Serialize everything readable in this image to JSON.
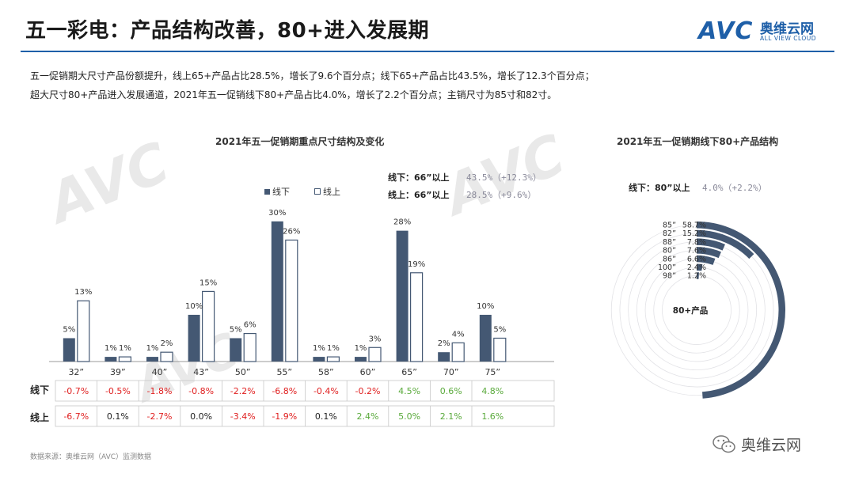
{
  "header": {
    "title": "五一彩电：产品结构改善，80+进入发展期",
    "logo_mark": "AVC",
    "logo_cn": "奥维云网",
    "logo_en": "ALL VIEW CLOUD"
  },
  "summary": {
    "line1": "五一促销期大尺寸产品份额提升，线上65+产品占比28.5%，增长了9.6个百分点；线下65+产品占比43.5%，增长了12.3个百分点；",
    "line2": "超大尺寸80+产品进入发展通道，2021年五一促销线下80+产品占比4.0%，增长了2.2个百分点；主销尺寸为85寸和82寸。"
  },
  "bar_notes": [
    {
      "label": "线下：66”以上",
      "value": "43.5%（+12.3%）"
    },
    {
      "label": "线上：66”以上",
      "value": "28.5%（+9.6%）"
    }
  ],
  "table": {
    "row_offline_label": "线下",
    "row_online_label": "线上"
  },
  "radial_note": {
    "label": "线下：80”以上",
    "value": "4.0%（+2.2%）"
  },
  "footer": {
    "source": "数据来源：奥维云网（AVC）监测数据",
    "wechat_name": "奥维云网"
  },
  "colors": {
    "offline": "#445873",
    "online": "#ffffff",
    "positive": "#5aaa3c",
    "negative": "#e02020",
    "neutral": "#222222",
    "brand": "#1e5fa8"
  },
  "chart_data": [
    {
      "type": "bar",
      "title": "2021年五一促销期重点尺寸结构及变化",
      "categories": [
        "32”",
        "39”",
        "40”",
        "43”",
        "50”",
        "55”",
        "58”",
        "60”",
        "65”",
        "70”",
        "75”"
      ],
      "series": [
        {
          "name": "线下",
          "values": [
            5,
            1,
            1,
            10,
            5,
            30,
            1,
            1,
            28,
            2,
            10
          ],
          "labels": [
            "5%",
            "1%",
            "1%",
            "10%",
            "5%",
            "30%",
            "1%",
            "1%",
            "28%",
            "2%",
            "10%"
          ]
        },
        {
          "name": "线上",
          "values": [
            13,
            1,
            2,
            15,
            6,
            26,
            1,
            3,
            19,
            4,
            5
          ],
          "labels": [
            "13%",
            "1%",
            "2%",
            "15%",
            "6%",
            "26%",
            "1%",
            "3%",
            "19%",
            "4%",
            "5%"
          ]
        }
      ],
      "changes": {
        "线下": [
          "-0.7%",
          "-0.5%",
          "-1.8%",
          "-0.8%",
          "-2.2%",
          "-6.8%",
          "-0.4%",
          "-0.2%",
          "4.5%",
          "0.6%",
          "4.8%"
        ],
        "线上": [
          "-6.7%",
          "0.1%",
          "-2.7%",
          "0.0%",
          "-3.4%",
          "-1.9%",
          "0.1%",
          "2.4%",
          "5.0%",
          "2.1%",
          "1.6%"
        ]
      },
      "ylim": [
        0,
        32
      ]
    },
    {
      "type": "radial-bar",
      "title": "2021年五一促销期线下80+产品结构",
      "center_label": "80+产品",
      "categories": [
        "85”",
        "82”",
        "88”",
        "80”",
        "86”",
        "100”",
        "98”"
      ],
      "values": [
        58.7,
        15.2,
        7.8,
        7.6,
        6.6,
        2.4,
        1.2
      ],
      "value_labels": [
        "58.7%",
        "15.2%",
        "7.8%",
        "7.6%",
        "6.6%",
        "2.4%",
        "1.2%"
      ]
    }
  ]
}
